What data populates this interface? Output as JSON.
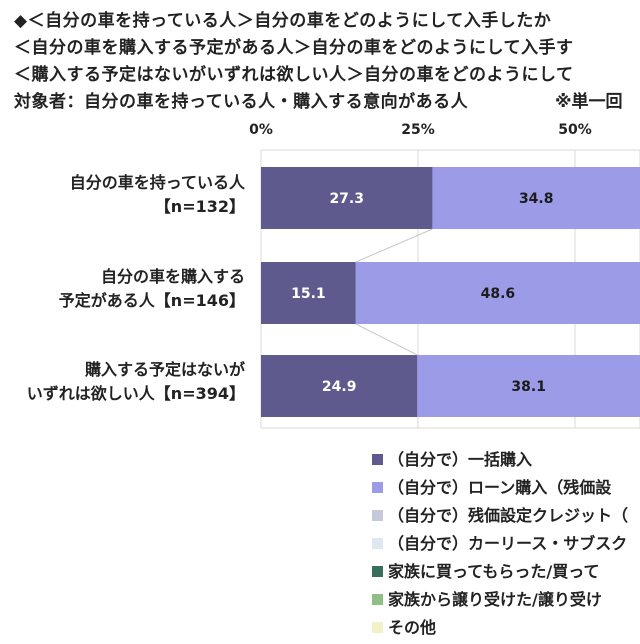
{
  "header": {
    "line1": "◆＜自分の車を持っている人＞自分の車をどのようにして入手したか",
    "line2": "＜自分の車を購入する予定がある人＞自分の車をどのようにして入手す",
    "line3": "＜購入する予定はないがいずれは欲しい人＞自分の車をどのようにして",
    "line4": "対象者：自分の車を持っている人・購入する意向がある人",
    "note": "※単一回"
  },
  "rows": [
    {
      "line1": "自分の車を持っている人",
      "line2": "【n=132】"
    },
    {
      "line1": "自分の車を購入する",
      "line2": "予定がある人【n=146】"
    },
    {
      "line1": "購入する予定はないが",
      "line2": "いずれは欲しい人【n=394】"
    }
  ],
  "legend": [
    "（自分で）一括購入",
    "（自分で）ローン購入（残価設",
    "（自分で）残価設定クレジット（",
    "（自分で）カーリース・サブスク",
    "家族に買ってもらった/買って",
    "家族から譲り受けた/譲り受け",
    "その他"
  ],
  "chart_data": {
    "type": "bar",
    "orientation": "horizontal",
    "stacked": true,
    "xlim": [
      0,
      100
    ],
    "x_ticks": [
      "0%",
      "25%",
      "50%"
    ],
    "grid": true,
    "categories": [
      "自分の車を持っている人【n=132】",
      "自分の車を購入する予定がある人【n=146】",
      "購入する予定はないがいずれは欲しい人【n=394】"
    ],
    "series": [
      {
        "name": "（自分で）一括購入",
        "color": "#5f5a8e",
        "values": [
          27.3,
          15.1,
          24.9
        ]
      },
      {
        "name": "（自分で）ローン購入（残価設",
        "color": "#9b9be8",
        "values": [
          34.8,
          48.6,
          38.1
        ]
      }
    ],
    "legend_colors": [
      "#5f5a8e",
      "#9b9be8",
      "#c6c9da",
      "#dde9ef",
      "#3a6e5c",
      "#8dbf86",
      "#f3f1c8"
    ]
  }
}
